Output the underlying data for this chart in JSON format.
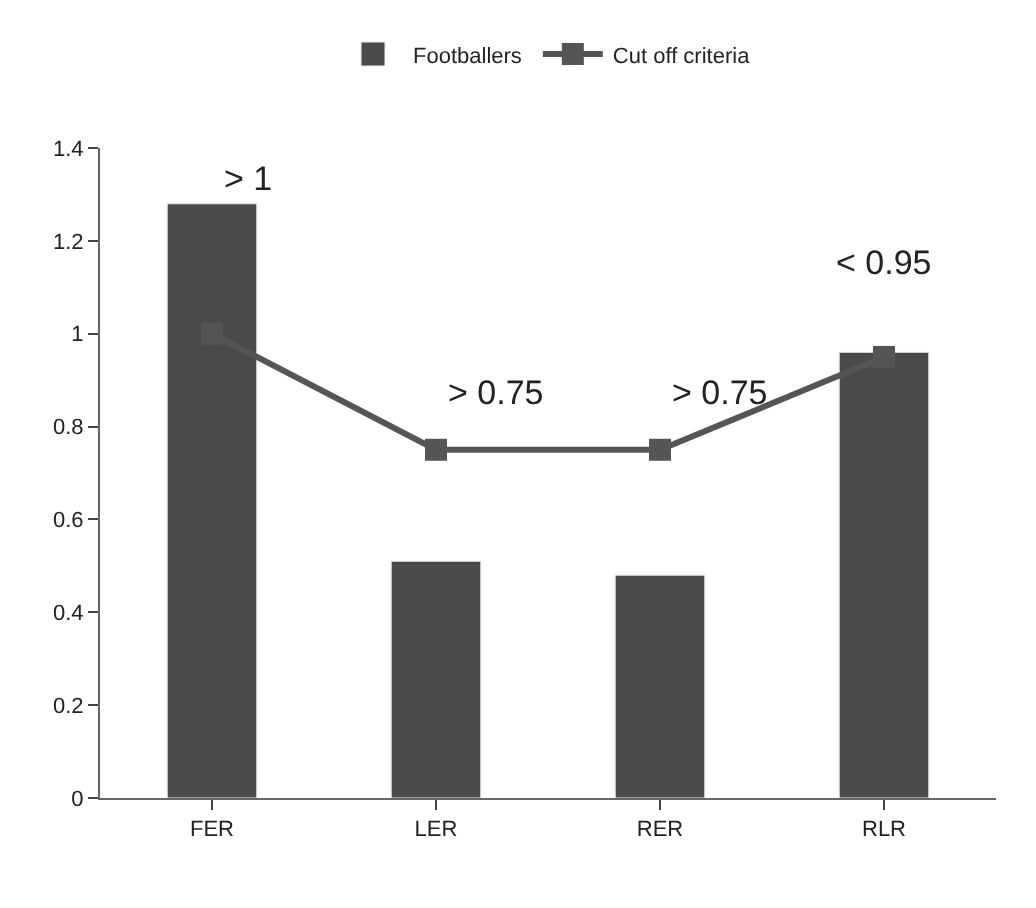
{
  "chart_data": {
    "type": "bar",
    "categories": [
      "FER",
      "LER",
      "RER",
      "RLR"
    ],
    "series": [
      {
        "name": "Footballers",
        "color": "#4a4a4a",
        "values": [
          1.28,
          0.51,
          0.48,
          0.96
        ]
      },
      {
        "name": "Cut off criteria",
        "type": "line",
        "color": "#555555",
        "values": [
          1,
          0.75,
          0.75,
          0.95
        ]
      }
    ],
    "ylim": [
      0,
      1.4
    ],
    "yticks": [
      0,
      0.2,
      0.4,
      0.6,
      0.8,
      1,
      1.2,
      1.4
    ],
    "legend": "top",
    "marker": "square",
    "annotations": [
      {
        "text": "> 1",
        "x": "FER",
        "y": 1.28
      },
      {
        "text": "> 0.75",
        "x": "LER",
        "y": 0.75
      },
      {
        "text": "> 0.75",
        "x": "RER",
        "y": 0.75
      },
      {
        "text": "< 0.95",
        "x": "RLR",
        "y": 0.96
      }
    ]
  }
}
